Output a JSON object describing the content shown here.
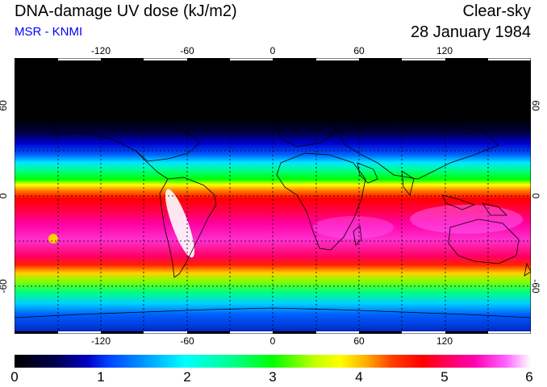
{
  "header": {
    "title": "DNA-damage UV dose (kJ/m2)",
    "source": "MSR - KNMI",
    "condition": "Clear-sky",
    "date": "28 January 1984"
  },
  "colors": {
    "source_text": "#0000ff",
    "graticule": "#000000"
  },
  "map": {
    "lon_ticks_top": [
      "-120",
      "-60",
      "0",
      "60",
      "120"
    ],
    "lon_ticks_bottom": [
      "-120",
      "-60",
      "0",
      "60",
      "120"
    ],
    "lat_ticks_left": [
      "60",
      "0",
      "-60"
    ],
    "lat_ticks_right": [
      "60",
      "0",
      "-60"
    ]
  },
  "colorbar": {
    "labels": [
      "0",
      "1",
      "2",
      "3",
      "4",
      "5",
      "6"
    ]
  }
}
